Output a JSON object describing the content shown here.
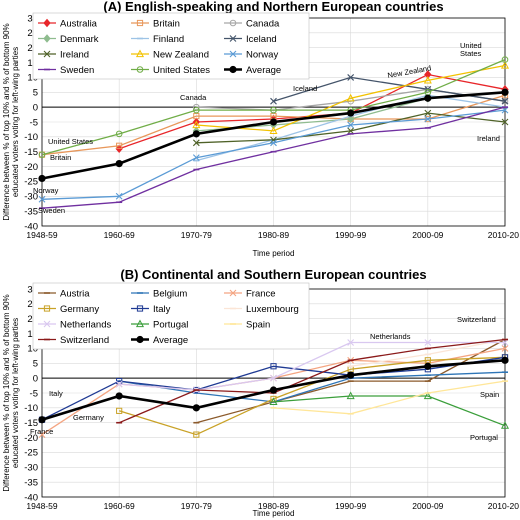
{
  "chart_data": [
    {
      "type": "line",
      "title": "(A) English-speaking and Northern European countries",
      "xlabel": "Time period",
      "ylabel": "Difference between % of top 10% and % of bottom 90% educated voters voting for left-wing parties",
      "categories": [
        "1948-59",
        "1960-69",
        "1970-79",
        "1980-89",
        "1990-99",
        "2000-09",
        "2010-20"
      ],
      "ylim": [
        -40,
        30
      ],
      "yticks": [
        -40,
        -35,
        -30,
        -25,
        -20,
        -15,
        -10,
        -5,
        0,
        5,
        10,
        15,
        20,
        25,
        30
      ],
      "grid": true,
      "legend_columns": 3,
      "series": [
        {
          "name": "Australia",
          "color": "#e8262a",
          "marker": "diamond",
          "values": [
            null,
            -14,
            -5,
            -4,
            -2,
            11,
            6
          ]
        },
        {
          "name": "Britain",
          "color": "#e8975a",
          "marker": "square",
          "values": [
            -16,
            -13,
            -3,
            -3,
            -4,
            -4,
            4
          ]
        },
        {
          "name": "Canada",
          "color": "#a6a6a6",
          "marker": "circle",
          "values": [
            null,
            null,
            0,
            -1,
            2,
            6,
            2
          ]
        },
        {
          "name": "Denmark",
          "color": "#8fbc8f",
          "marker": "diamond",
          "values": [
            null,
            null,
            -8,
            -6,
            -4,
            3,
            5
          ]
        },
        {
          "name": "Finland",
          "color": "#9dc3e6",
          "marker": "dash",
          "values": [
            null,
            null,
            -18,
            -11,
            -3,
            4,
            0
          ]
        },
        {
          "name": "Iceland",
          "color": "#44546a",
          "marker": "cross",
          "values": [
            null,
            null,
            null,
            2,
            10,
            6,
            2
          ]
        },
        {
          "name": "Ireland",
          "color": "#4f6228",
          "marker": "cross",
          "values": [
            null,
            null,
            -12,
            -11,
            -8,
            -2,
            -5
          ]
        },
        {
          "name": "New Zealand",
          "color": "#f2c200",
          "marker": "triangle",
          "values": [
            null,
            null,
            -6,
            -8,
            3,
            9,
            14
          ]
        },
        {
          "name": "Norway",
          "color": "#5b9bd5",
          "marker": "cross",
          "values": [
            -31,
            -30,
            -17,
            -12,
            -6,
            -4,
            -1
          ]
        },
        {
          "name": "Sweden",
          "color": "#7030a0",
          "marker": "dash",
          "values": [
            -34,
            -32,
            -21,
            -15,
            -9,
            -7,
            0
          ]
        },
        {
          "name": "United States",
          "color": "#70ad47",
          "marker": "circle",
          "values": [
            -16,
            -9,
            -1,
            -1,
            -1,
            5,
            16
          ]
        },
        {
          "name": "Average",
          "color": "#000000",
          "marker": "filled-circle",
          "values": [
            -24,
            -19,
            -9,
            -5,
            -2,
            3,
            5
          ]
        }
      ],
      "annotations": [
        "United States",
        "Britain",
        "Norway",
        "Sweden",
        "Canada",
        "Iceland",
        "New Zealand",
        "United States",
        "Ireland"
      ]
    },
    {
      "type": "line",
      "title": "(B) Continental and Southern European countries",
      "xlabel": "Time period",
      "ylabel": "Difference between % of top 10% and % of bottom 90% educated voters voting for left-wing parties",
      "categories": [
        "1948-59",
        "1960-69",
        "1970-79",
        "1980-89",
        "1990-99",
        "2000-09",
        "2010-20"
      ],
      "ylim": [
        -40,
        30
      ],
      "yticks": [
        -40,
        -35,
        -30,
        -25,
        -20,
        -15,
        -10,
        -5,
        0,
        5,
        10,
        15,
        20,
        25,
        30
      ],
      "grid": true,
      "legend_columns": 3,
      "series": [
        {
          "name": "Austria",
          "color": "#8b5a2b",
          "marker": "dash",
          "values": [
            null,
            null,
            -15,
            -8,
            -1,
            -1,
            13
          ]
        },
        {
          "name": "Belgium",
          "color": "#2e75b6",
          "marker": "dash",
          "values": [
            null,
            -1,
            -5,
            -8,
            0,
            1,
            2
          ]
        },
        {
          "name": "France",
          "color": "#f4a582",
          "marker": "cross",
          "values": [
            -19,
            -2,
            -4,
            0,
            6,
            5,
            10
          ]
        },
        {
          "name": "Germany",
          "color": "#c9a227",
          "marker": "square",
          "values": [
            null,
            -11,
            -19,
            -7,
            3,
            6,
            7
          ]
        },
        {
          "name": "Italy",
          "color": "#1f3a93",
          "marker": "square",
          "values": [
            -14,
            -1,
            -4,
            4,
            1,
            3,
            7
          ]
        },
        {
          "name": "Luxembourg",
          "color": "#fbe5d6",
          "marker": "dash",
          "values": [
            null,
            null,
            null,
            null,
            4,
            8,
            13
          ]
        },
        {
          "name": "Netherlands",
          "color": "#d9c8f0",
          "marker": "cross",
          "values": [
            null,
            -2,
            -4,
            0,
            12,
            12,
            12
          ]
        },
        {
          "name": "Portugal",
          "color": "#3a9e3a",
          "marker": "triangle",
          "values": [
            null,
            null,
            null,
            -8,
            -6,
            -6,
            -16
          ]
        },
        {
          "name": "Spain",
          "color": "#ffe699",
          "marker": "dash",
          "values": [
            null,
            null,
            null,
            -10,
            -12,
            -5,
            -1
          ]
        },
        {
          "name": "Switzerland",
          "color": "#8b1a1a",
          "marker": "dash",
          "values": [
            null,
            -15,
            -4,
            -5,
            6,
            10,
            13
          ]
        },
        {
          "name": "Average",
          "color": "#000000",
          "marker": "filled-circle",
          "values": [
            -14,
            -6,
            -10,
            -4,
            1,
            4,
            6
          ]
        }
      ],
      "annotations": [
        "Italy",
        "Germany",
        "France",
        "Netherlands",
        "Switzerland",
        "Spain",
        "Portugal"
      ]
    }
  ]
}
